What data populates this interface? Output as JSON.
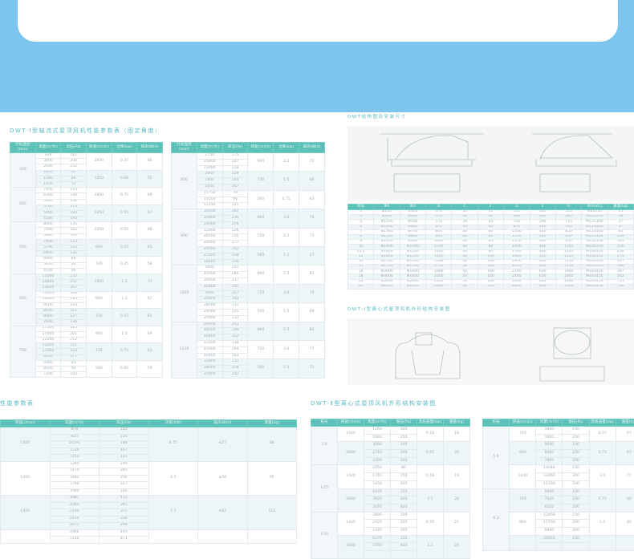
{
  "colors": {
    "band": "#7dc4ef",
    "header": "#5cc1b8",
    "title": "#5ab9c6"
  },
  "titles": {
    "axial": "DWT-I型轴流式屋顶风机性能参数表（固定角度）",
    "structure": "DWT结构图及安装尺寸",
    "centrifugal1": "DWT-I型离心式屋顶风机外形结构安装图",
    "perf": "性能参数表",
    "centrifugal2": "DWT-Ⅱ型离心式屋顶风机外形结构安装图"
  },
  "axial_headers": [
    "叶轮直径(mm)",
    "风量(m³/h)",
    "风压(Pa)",
    "转速(r/min)",
    "功率(kw)",
    "噪声dB(A)"
  ],
  "axial_left": [
    {
      "k": "300",
      "subs": [
        {
          "s": "2850",
          "r": [
            [
              "330",
              "181"
            ],
            [
              "3000",
              "206"
            ],
            [
              "2600",
              "232"
            ]
          ],
          "p": "0.37",
          "n": "66"
        },
        {
          "s": "1450",
          "r": [
            [
              "1650",
              "62"
            ],
            [
              "1560",
              "66"
            ],
            [
              "1450",
              "72"
            ]
          ],
          "p": "0.06",
          "n": "52"
        }
      ]
    },
    {
      "k": "400",
      "subs": [
        {
          "s": "2850",
          "r": [
            [
              "7450",
              "193"
            ],
            [
              "6350",
              "230"
            ],
            [
              "5300",
              "250"
            ]
          ],
          "p": "0.75",
          "n": "69"
        },
        {
          "s": "1450",
          "r": [
            [
              "5700",
              "176"
            ],
            [
              "5400",
              "184"
            ],
            [
              "4580",
              "190"
            ]
          ],
          "p": "0.55",
          "n": "67"
        }
      ]
    },
    {
      "k": "500",
      "subs": [
        {
          "s": "1450",
          "r": [
            [
              "8000",
              "135"
            ],
            [
              "7000",
              "162"
            ],
            [
              "5600",
              "191"
            ]
          ],
          "p": "0.55",
          "n": "68"
        },
        {
          "s": "960",
          "r": [
            [
              "7900",
              "113"
            ],
            [
              "5700",
              "122"
            ],
            [
              "6400",
              "131"
            ]
          ],
          "p": "0.37",
          "n": "63"
        },
        {
          "s": "720",
          "r": [
            [
              "6000",
              "88"
            ],
            [
              "5000",
              "92"
            ],
            [
              "4100",
              "96"
            ]
          ],
          "p": "0.25",
          "n": "58"
        }
      ]
    },
    {
      "k": "600",
      "subs": [
        {
          "s": "1450",
          "r": [
            [
              "15000",
              "232"
            ],
            [
              "14000",
              "251"
            ],
            [
              "13000",
              "267"
            ]
          ],
          "p": "1.5",
          "n": "73"
        },
        {
          "s": "960",
          "r": [
            [
              "11000",
              "168"
            ],
            [
              "10000",
              "183"
            ],
            [
              "9100",
              "193"
            ]
          ],
          "p": "1.1",
          "n": "67"
        },
        {
          "s": "720",
          "r": [
            [
              "8500",
              "111"
            ],
            [
              "8000",
              "127"
            ],
            [
              "7600",
              "136"
            ]
          ],
          "p": "0.55",
          "n": "62"
        }
      ]
    },
    {
      "k": "700",
      "subs": [
        {
          "s": "960",
          "r": [
            [
              "17500",
              "165"
            ],
            [
              "15000",
              "201"
            ],
            [
              "12500",
              "212"
            ]
          ],
          "p": "1.5",
          "n": "69"
        },
        {
          "s": "720",
          "r": [
            [
              "12000",
              "141"
            ],
            [
              "11000",
              "163"
            ],
            [
              "9200",
              "177"
            ]
          ],
          "p": "0.75",
          "n": "63"
        },
        {
          "s": "560",
          "r": [
            [
              "9300",
              "83"
            ],
            [
              "8500",
              "94"
            ],
            [
              "7200",
              "102"
            ]
          ],
          "p": "0.55",
          "n": "59"
        }
      ]
    }
  ],
  "axial_right": [
    {
      "k": "800",
      "subs": [
        {
          "s": "960",
          "r": [
            [
              "2750",
              "175"
            ],
            [
              "25000",
              "207"
            ],
            [
              "23000",
              "228"
            ]
          ],
          "p": "2.2",
          "n": "72"
        },
        {
          "s": "720",
          "r": [
            [
              "2000",
              "129"
            ],
            [
              "1800",
              "154"
            ],
            [
              "1600",
              "167"
            ]
          ],
          "p": "1.5",
          "n": "66"
        },
        {
          "s": "560",
          "r": [
            [
              "15750",
              "78"
            ],
            [
              "14500",
              "96"
            ],
            [
              "12250",
              "121"
            ]
          ],
          "p": "0.75",
          "n": "63"
        }
      ]
    },
    {
      "k": "900",
      "subs": [
        {
          "s": "960",
          "r": [
            [
              "34500",
              "202"
            ],
            [
              "29000",
              "236"
            ],
            [
              "24000",
              "256"
            ]
          ],
          "p": "3.0",
          "n": "76"
        },
        {
          "s": "720",
          "r": [
            [
              "32000",
              "126"
            ],
            [
              "28000",
              "156"
            ],
            [
              "24000",
              "177"
            ]
          ],
          "p": "2.2",
          "n": "73"
        },
        {
          "s": "560",
          "r": [
            [
              "24000",
              "102"
            ],
            [
              "21500",
              "118"
            ],
            [
              "18600",
              "126"
            ]
          ],
          "p": "1.1",
          "n": "67"
        }
      ]
    },
    {
      "k": "1000",
      "subs": [
        {
          "s": "960",
          "r": [
            [
              "5000",
              "251"
            ],
            [
              "45000",
              "286"
            ],
            [
              "39000",
              "317"
            ]
          ],
          "p": "5.5",
          "n": "81"
        },
        {
          "s": "720",
          "r": [
            [
              "46000",
              "141"
            ],
            [
              "4000",
              "167"
            ],
            [
              "35000",
              "183"
            ]
          ],
          "p": "3.0",
          "n": "76"
        },
        {
          "s": "560",
          "r": [
            [
              "28000",
              "111"
            ],
            [
              "24000",
              "125"
            ],
            [
              "20000",
              "133"
            ]
          ],
          "p": "1.5",
          "n": "69"
        }
      ]
    },
    {
      "k": "1120",
      "subs": [
        {
          "s": "960",
          "r": [
            [
              "56900",
              "253"
            ],
            [
              "49500",
              "196"
            ],
            [
              "40400",
              "322"
            ]
          ],
          "p": "5.5",
          "n": "82"
        },
        {
          "s": "720",
          "r": [
            [
              "52500",
              "138"
            ],
            [
              "45000",
              "169"
            ],
            [
              "40000",
              "183"
            ]
          ],
          "p": "3.0",
          "n": "77"
        },
        {
          "s": "560",
          "r": [
            [
              "32000",
              "111"
            ],
            [
              "28000",
              "128"
            ],
            [
              "25000",
              "142"
            ]
          ],
          "p": "1.5",
          "n": "71"
        }
      ]
    }
  ],
  "dim_headers": [
    "机号",
    "ΦA",
    "ΦD",
    "B",
    "C",
    "F",
    "G",
    "E",
    "H",
    "M(4)xL1",
    "重量(kg)"
  ],
  "dim_rows": [
    [
      "3",
      "Φ450",
      "Φ300",
      "370",
      "30",
      "60",
      "510",
      "300",
      "545",
      "M8x250",
      "15"
    ],
    [
      "4",
      "Φ650",
      "Φ400",
      "470",
      "30",
      "60",
      "630",
      "340",
      "585",
      "M12x250",
      "28"
    ],
    [
      "5",
      "Φ1000",
      "Φ500",
      "570",
      "30",
      "60",
      "750",
      "390",
      "715",
      "M12x300",
      "37"
    ],
    [
      "6",
      "Φ1000",
      "Φ600",
      "670",
      "30",
      "60",
      "870",
      "440",
      "765",
      "M12x300",
      "57"
    ],
    [
      "7",
      "Φ1340",
      "Φ700",
      "800",
      "40",
      "80",
      "1000",
      "480",
      "850",
      "M12x300",
      "85"
    ],
    [
      "8",
      "Φ1340",
      "Φ800",
      "900",
      "40",
      "80",
      "1100",
      "480",
      "950",
      "M12x350",
      "124"
    ],
    [
      "9",
      "Φ1650",
      "Φ900",
      "1000",
      "40",
      "80",
      "1250",
      "480",
      "950",
      "M12x350",
      "145"
    ],
    [
      "10",
      "Φ1800",
      "Φ1000",
      "1100",
      "40",
      "80",
      "1400",
      "480",
      "1105",
      "M16x350",
      "216"
    ],
    [
      "11.2",
      "Φ1800",
      "Φ1120",
      "1240",
      "40",
      "80",
      "1540",
      "480",
      "1105",
      "M16x350",
      "258"
    ],
    [
      "12",
      "Φ1800",
      "Φ1200",
      "1360",
      "50",
      "100",
      "1660",
      "500",
      "1125",
      "M16x350",
      "279"
    ],
    [
      "14",
      "Φ2500",
      "Φ1400",
      "1560",
      "50",
      "100",
      "1900",
      "600",
      "1350",
      "M16x400",
      "357"
    ],
    [
      "15",
      "Φ2500",
      "Φ1500",
      "1700",
      "50",
      "100",
      "2040",
      "600",
      "1350",
      "M16x400",
      "386"
    ],
    [
      "16",
      "Φ3000",
      "Φ1600",
      "1800",
      "50",
      "100",
      "2160",
      "600",
      "1460",
      "M16x450",
      "397"
    ],
    [
      "18",
      "Φ3000",
      "Φ1800",
      "2000",
      "50",
      "100",
      "2400",
      "600",
      "1460",
      "M16x450",
      "562"
    ],
    [
      "20",
      "Φ3400",
      "Φ2000",
      "2200",
      "50",
      "100",
      "2600",
      "600",
      "1460",
      "M20x450",
      "721"
    ],
    [
      "22",
      "Φ4200",
      "Φ2200",
      "2400",
      "50",
      "100",
      "2800",
      "600",
      "1500",
      "M20x450",
      "756"
    ]
  ],
  "perf_headers": [
    "转速(r/min)",
    "风量(m³/h)",
    "风压(Pa)",
    "功率(KW)",
    "噪声dB(A)",
    "重量(kg)"
  ],
  "perf_groups": [
    {
      "s": "1450",
      "r": [
        [
          "878",
          "220"
        ],
        [
          "925",
          "210"
        ],
        [
          "10591",
          "188"
        ],
        [
          "1130",
          "167"
        ],
        [
          "1253",
          "122"
        ]
      ],
      "p": "0.75",
      "n": "≤57",
      "w": "88"
    },
    {
      "s": "1450",
      "r": [
        [
          "1395",
          "299"
        ],
        [
          "1470",
          "285"
        ],
        [
          "1682",
          "256"
        ],
        [
          "1794",
          "227"
        ],
        [
          "1990",
          "166"
        ]
      ],
      "p": "1.1",
      "n": "≤59",
      "w": "95"
    },
    {
      "s": "1450",
      "r": [
        [
          "1887",
          "412"
        ],
        [
          "2083",
          "391"
        ],
        [
          "2194",
          "372"
        ],
        [
          "2510",
          "334"
        ],
        [
          "2677",
          "298"
        ]
      ],
      "p": "1.1",
      "n": "≤62",
      "w": "115"
    },
    {
      "s": "",
      "r": [
        [
          "2966",
          "495"
        ],
        [
          "3124",
          "471"
        ]
      ],
      "p": "",
      "n": "",
      "w": ""
    }
  ],
  "c2_headers": [
    "机号",
    "转速(r/min)",
    "风量(m³/h)",
    "静压(Pa)",
    "装机容量(kw)",
    "重量(kg)"
  ],
  "c2_left": [
    {
      "k": "2.8",
      "subs": [
        {
          "s": "1440",
          "r": [
            [
              "1260",
              "100"
            ],
            [
              "1040",
              "150"
            ]
          ],
          "p": "0.18",
          "n": "18"
        },
        {
          "s": "2880",
          "r": [
            [
              "3060",
              "100"
            ],
            [
              "2710",
              "300"
            ],
            [
              "2300",
              "500"
            ]
          ],
          "p": "0.55",
          "n": "20"
        }
      ]
    },
    {
      "k": "3.15",
      "subs": [
        {
          "s": "1440",
          "r": [
            [
              "2050",
              "80"
            ],
            [
              "1740",
              "150"
            ],
            [
              "1450",
              "200"
            ]
          ],
          "p": "0.18",
          "n": "19"
        },
        {
          "s": "2880",
          "r": [
            [
              "4370",
              "150"
            ],
            [
              "3920",
              "400"
            ],
            [
              "3470",
              "600"
            ]
          ],
          "p": "1.1",
          "n": "24"
        }
      ]
    },
    {
      "k": "3.55",
      "subs": [
        {
          "s": "1440",
          "r": [
            [
              "2880",
              "100"
            ],
            [
              "2620",
              "150"
            ],
            [
              "2320",
              "200"
            ]
          ],
          "p": "0.25",
          "n": "21"
        },
        {
          "s": "2880",
          "r": [
            [
              "6270",
              "150"
            ],
            [
              "5760",
              "400"
            ],
            [
              "",
              ""
            ]
          ],
          "p": "2.2",
          "n": "29"
        }
      ]
    }
  ],
  "c2_right": [
    {
      "k": "5.6",
      "subs": [
        {
          "s": "720",
          "r": [
            [
              "4860",
              "150"
            ],
            [
              "1800",
              "200"
            ]
          ],
          "p": "0.37",
          "n": "67"
        },
        {
          "s": "960",
          "r": [
            [
              "9040",
              "100"
            ],
            [
              "8460",
              "150"
            ],
            [
              "7800",
              "200"
            ]
          ],
          "p": "0.75",
          "n": "67"
        },
        {
          "s": "1440",
          "r": [
            [
              "14040",
              "150"
            ],
            [
              "12960",
              "300"
            ],
            [
              "11160",
              "500"
            ]
          ],
          "p": "3.0",
          "n": "77"
        }
      ]
    },
    {
      "k": "6.3",
      "subs": [
        {
          "s": "720",
          "r": [
            [
              "9090",
              "100"
            ],
            [
              "7920",
              "150"
            ],
            [
              "6210",
              "200"
            ]
          ],
          "p": "0.75",
          "n": "80"
        },
        {
          "s": "960",
          "r": [
            [
              "12450",
              "150"
            ],
            [
              "11760",
              "200"
            ],
            [
              "9840",
              "300"
            ]
          ],
          "p": "1.5",
          "n": "83"
        },
        {
          "s": "",
          "r": [
            [
              "20020",
              "150"
            ],
            [
              "",
              ""
            ]
          ],
          "p": "",
          "n": ""
        }
      ]
    }
  ]
}
